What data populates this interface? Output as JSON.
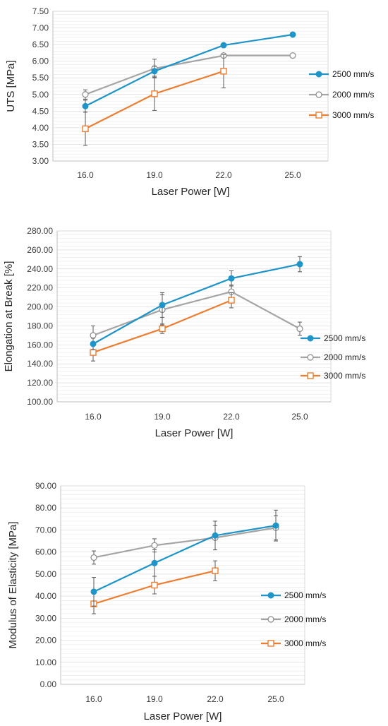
{
  "chart_data": [
    {
      "type": "line",
      "xlabel": "Laser Power [W]",
      "ylabel": "UTS [MPa]",
      "categories": [
        "16.0",
        "19.0",
        "22.0",
        "25.0"
      ],
      "ylim": [
        3.0,
        7.5
      ],
      "ystep": 0.5,
      "ydecimals": 2,
      "yticks": [
        "3.00",
        "3.50",
        "4.00",
        "4.50",
        "5.00",
        "5.50",
        "6.00",
        "6.50",
        "7.00",
        "7.50"
      ],
      "grid": true,
      "legend_position": "right",
      "series": [
        {
          "name": "2500 mm/s",
          "values": [
            4.65,
            5.7,
            6.48,
            6.8
          ],
          "errors": [
            0.18,
            0.15,
            0.04,
            0.06
          ],
          "color": "#1f94c8",
          "marker": "circle-filled"
        },
        {
          "name": "2000 mm/s",
          "values": [
            5.0,
            5.78,
            6.17,
            6.17
          ],
          "errors": [
            0.14,
            0.28,
            0.0,
            0.05
          ],
          "color": "#a5a5a5",
          "marker": "circle-open"
        },
        {
          "name": "3000 mm/s",
          "values": [
            3.97,
            5.02,
            5.7,
            null
          ],
          "errors": [
            0.5,
            0.5,
            0.5,
            null
          ],
          "color": "#ed7d31",
          "marker": "square-open"
        }
      ]
    },
    {
      "type": "line",
      "xlabel": "Laser Power [W]",
      "ylabel": "Elongation at Break [%]",
      "categories": [
        "16.0",
        "19.0",
        "22.0",
        "25.0"
      ],
      "ylim": [
        100.0,
        280.0
      ],
      "ystep": 20,
      "ydecimals": 2,
      "yticks": [
        "100.00",
        "120.00",
        "140.00",
        "160.00",
        "180.00",
        "200.00",
        "220.00",
        "240.00",
        "260.00",
        "280.00"
      ],
      "grid": true,
      "legend_position": "right",
      "series": [
        {
          "name": "2500 mm/s",
          "values": [
            161,
            202,
            230,
            245
          ],
          "errors": [
            6,
            13,
            8,
            8
          ],
          "color": "#1f94c8",
          "marker": "circle-filled"
        },
        {
          "name": "2000 mm/s",
          "values": [
            170,
            197,
            216,
            177
          ],
          "errors": [
            10,
            16,
            7,
            7
          ],
          "color": "#a5a5a5",
          "marker": "circle-open"
        },
        {
          "name": "3000 mm/s",
          "values": [
            152,
            177,
            207,
            null
          ],
          "errors": [
            9,
            5,
            8,
            null
          ],
          "color": "#ed7d31",
          "marker": "square-open"
        }
      ]
    },
    {
      "type": "line",
      "xlabel": "Laser Power [W]",
      "ylabel": "Modulus of Elasticity [MPa]",
      "categories": [
        "16.0",
        "19.0",
        "22.0",
        "25.0"
      ],
      "ylim": [
        0.0,
        90.0
      ],
      "ystep": 10,
      "ydecimals": 2,
      "yticks": [
        "0.00",
        "10.00",
        "20.00",
        "30.00",
        "40.00",
        "50.00",
        "60.00",
        "70.00",
        "80.00",
        "90.00"
      ],
      "grid": true,
      "legend_position": "right",
      "series": [
        {
          "name": "2500 mm/s",
          "values": [
            42,
            55,
            67.5,
            72
          ],
          "errors": [
            6.5,
            6.0,
            6.5,
            7.0
          ],
          "color": "#1f94c8",
          "marker": "circle-filled"
        },
        {
          "name": "2000 mm/s",
          "values": [
            57.5,
            63,
            66.5,
            71
          ],
          "errors": [
            3.0,
            3.0,
            5.5,
            5.5
          ],
          "color": "#a5a5a5",
          "marker": "circle-open"
        },
        {
          "name": "3000 mm/s",
          "values": [
            36.5,
            45,
            51.5,
            null
          ],
          "errors": [
            4.5,
            4.0,
            4.5,
            null
          ],
          "color": "#ed7d31",
          "marker": "square-open"
        }
      ]
    }
  ]
}
